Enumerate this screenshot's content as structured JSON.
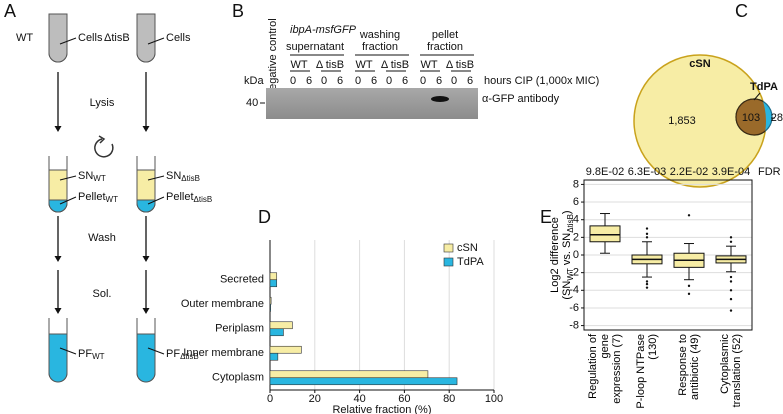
{
  "panel_labels": [
    "A",
    "B",
    "C",
    "D",
    "E"
  ],
  "panel_a": {
    "strains": [
      "WT",
      "ΔtisB"
    ],
    "cells": "Cells",
    "steps": [
      "Lysis",
      "Wash",
      "Sol."
    ],
    "sn": "SN",
    "pellet": "Pellet",
    "pf": "PF",
    "sub_wt": "WT",
    "sub_tisb": "ΔtisB"
  },
  "panel_b": {
    "construct": "ibpA-msfGFP",
    "lane_label": "negative control",
    "fractions": [
      [
        "supernatant"
      ],
      [
        "washing",
        "fraction"
      ],
      [
        "pellet",
        "fraction"
      ]
    ],
    "strains": [
      "WT",
      "Δ tisB"
    ],
    "timepoints": [
      "0",
      "6"
    ],
    "time_label": "hours CIP (1,000x MIC)",
    "kda": "kDa",
    "marker": "40",
    "antibody": "α-GFP antibody"
  },
  "panel_c": {
    "sets": [
      "cSN",
      "TdPA"
    ],
    "counts": [
      "1,853",
      "103",
      "28"
    ]
  },
  "chart_data": [
    {
      "type": "hbar",
      "categories": [
        "Secreted",
        "Outer membrane",
        "Periplasm",
        "Inner membrane",
        "Cytoplasm"
      ],
      "series": [
        {
          "name": "cSN",
          "color": "#f7eda5",
          "values": [
            3,
            0.5,
            10,
            14,
            70.5
          ]
        },
        {
          "name": "TdPA",
          "color": "#29b6e0",
          "values": [
            3,
            0.3,
            6,
            3.5,
            83.5
          ]
        }
      ],
      "xlabel": "Relative fraction (%)",
      "xlim": [
        0,
        100
      ],
      "xticks": [
        0,
        20,
        40,
        60,
        80,
        100
      ],
      "grid": true,
      "legend": "upper right"
    },
    {
      "type": "box",
      "color": "#f7eda5",
      "categories": [
        "Regulation of gene expression (7)",
        "P-loop NTPase (130)",
        "Response to antibiotic (49)",
        "Cytoplasmic translation (52)"
      ],
      "boxes": [
        {
          "whislo": 0.2,
          "q1": 1.5,
          "med": 2.3,
          "q3": 3.3,
          "whishi": 4.7,
          "fliers": []
        },
        {
          "whislo": -2.5,
          "q1": -1.0,
          "med": -0.5,
          "q3": 0.0,
          "whishi": 1.5,
          "fliers": [
            3,
            2.4,
            2,
            -3,
            -3.3,
            -3.7
          ]
        },
        {
          "whislo": -2.8,
          "q1": -1.4,
          "med": -0.6,
          "q3": 0.2,
          "whishi": 1.3,
          "fliers": [
            4.5,
            -3.5,
            -4.4
          ]
        },
        {
          "whislo": -1.9,
          "q1": -0.9,
          "med": -0.5,
          "q3": -0.1,
          "whishi": 1.0,
          "fliers": [
            2,
            1.5,
            -2.5,
            -3,
            -4,
            -5,
            -6.3
          ]
        }
      ],
      "fdr_labels": [
        "9.8E-02",
        "6.3E-03",
        "2.2E-02",
        "3.9E-04"
      ],
      "fdr_title": "FDR",
      "ylabel": {
        "line1": "Log2 difference",
        "line2": [
          "(SN",
          "WT",
          " vs. SN",
          "ΔtisB",
          ")"
        ]
      },
      "ylim": [
        -8.5,
        8.5
      ],
      "yticks": [
        -8,
        -6,
        -4,
        -2,
        0,
        2,
        4,
        6,
        8
      ],
      "grid": true
    }
  ]
}
